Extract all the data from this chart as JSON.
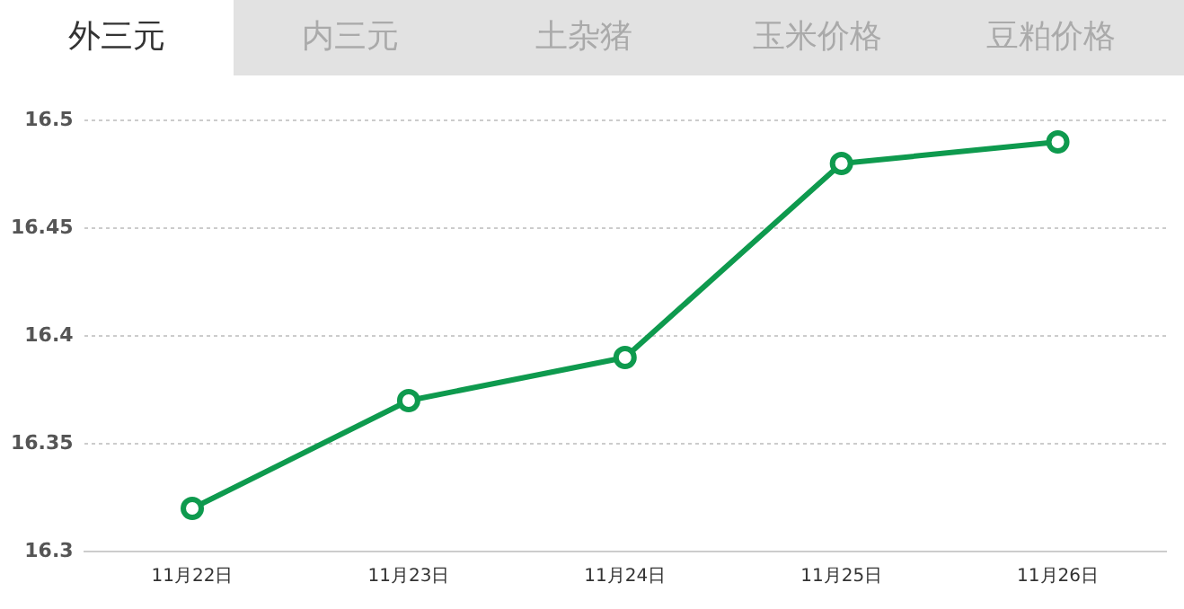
{
  "chart_data": {
    "type": "line",
    "title": "外三元",
    "annotations": [
      "内三元",
      "土杂猪",
      "玉米价格",
      "豆粕价格"
    ],
    "categories": [
      "11月22日",
      "11月23日",
      "11月24日",
      "11月25日",
      "11月26日"
    ],
    "series": [
      {
        "color": "#0e9a4e",
        "values": [
          16.32,
          16.37,
          16.39,
          16.48,
          16.49
        ]
      }
    ],
    "ylim": [
      16.3,
      16.5
    ],
    "yticks": [
      16.3,
      16.35,
      16.4,
      16.45,
      16.5
    ],
    "grid": "y",
    "legend": false,
    "marker": "circle",
    "line_style": "solid"
  }
}
